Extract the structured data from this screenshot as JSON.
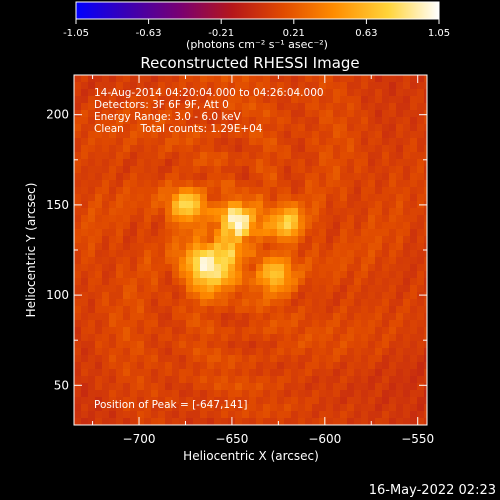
{
  "colorbar": {
    "tick_labels": [
      "-1.05",
      "-0.63",
      "-0.21",
      "0.21",
      "0.63",
      "1.05"
    ],
    "ticks": [
      -1.05,
      -0.63,
      -0.21,
      0.21,
      0.63,
      1.05
    ],
    "range": [
      -1.05,
      1.05
    ],
    "units": "(photons cm⁻² s⁻¹ asec⁻²)",
    "colors": [
      "#0000ff",
      "#3a00b4",
      "#7a0070",
      "#b5161a",
      "#e04a00",
      "#ff8c00",
      "#ffd43a",
      "#ffffff"
    ]
  },
  "chart_data": {
    "type": "heatmap",
    "title": "Reconstructed RHESSI Image",
    "xlabel": "Heliocentric X (arcsec)",
    "ylabel": "Heliocentric Y (arcsec)",
    "xlim": [
      -735,
      -545
    ],
    "ylim": [
      28,
      222
    ],
    "xticks": [
      -700,
      -650,
      -600,
      -550
    ],
    "yticks": [
      50,
      100,
      150,
      200
    ],
    "xtick_labels": [
      "−700",
      "−650",
      "−600",
      "−550"
    ],
    "ytick_labels": [
      "50",
      "100",
      "150",
      "200"
    ],
    "sources": [
      {
        "x": -647,
        "y": 141,
        "intensity": 1.0
      },
      {
        "x": -674,
        "y": 149,
        "intensity": 0.72
      },
      {
        "x": -654,
        "y": 121,
        "intensity": 0.62
      },
      {
        "x": -669,
        "y": 119,
        "intensity": 0.64
      },
      {
        "x": -621,
        "y": 140,
        "intensity": 0.66
      },
      {
        "x": -627,
        "y": 110,
        "intensity": 0.66
      },
      {
        "x": -660,
        "y": 108,
        "intensity": 0.55
      }
    ],
    "annotations": {
      "time_range": "14-Aug-2014 04:20:04.000 to 04:26:04.000",
      "detectors": "Detectors: 3F 6F 9F, Att 0",
      "energy_range": "Energy Range: 3.0 - 6.0 keV",
      "clean_counts": "Clean     Total counts: 1.29E+04",
      "peak_position": "Position of Peak = [-647,141]"
    }
  },
  "footer": {
    "timestamp": "16-May-2022 02:23"
  }
}
